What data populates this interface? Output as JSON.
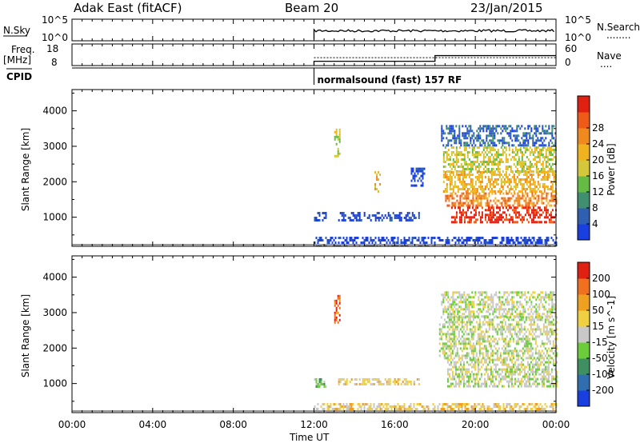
{
  "header": {
    "title": "Adak East (fitACF)",
    "beam": "Beam 20",
    "date": "23/Jan/2015"
  },
  "panels": {
    "nsky": {
      "left_label": "N.Sky",
      "right_label": "N.Search",
      "left_ticks": [
        "10^5",
        "10^0"
      ],
      "right_ticks": [
        "10^5",
        "10^0"
      ],
      "right_dots": "........"
    },
    "freq": {
      "left_label": "Freq.",
      "left_unit": "[MHz]",
      "right_label": "Nave",
      "left_ticks": [
        "18",
        "8"
      ],
      "right_ticks": [
        "60",
        "0"
      ],
      "right_dots": "....",
      "freq_mhz": [
        {
          "t": 12.0,
          "v": 10.0
        },
        {
          "t": 18.0,
          "v": 12.6
        },
        {
          "t": 24.0,
          "v": 12.6
        }
      ],
      "nave": [
        {
          "t": 12.0,
          "v": 22
        },
        {
          "t": 18.0,
          "v": 22
        },
        {
          "t": 24.0,
          "v": 22
        }
      ]
    },
    "cpid": {
      "label": "CPID",
      "program": "normalsound (fast) 157 RF",
      "start_hour": 12.0
    }
  },
  "chart_data": [
    {
      "type": "heatmap",
      "name": "power",
      "ylabel": "Slant Range [km]",
      "xlabel": "Time UT",
      "x_ticks": [
        "00:00",
        "04:00",
        "08:00",
        "12:00",
        "16:00",
        "20:00",
        "00:00"
      ],
      "xlim_hours": [
        0,
        24
      ],
      "ylim_km": [
        180,
        4600
      ],
      "y_ticks": [
        1000,
        2000,
        3000,
        4000
      ],
      "colorbar": {
        "label": "Power [dB]",
        "ticks": [
          "4",
          "8",
          "12",
          "16",
          "20",
          "24",
          "28"
        ],
        "colors": [
          "#1a3fe0",
          "#2f5fb0",
          "#3f8f70",
          "#66bb44",
          "#d4c83a",
          "#f0b21e",
          "#f08a1e",
          "#f05a18",
          "#e02010"
        ]
      },
      "regions": [
        {
          "t0": 12.0,
          "t1": 12.6,
          "r0": 900,
          "r1": 1150,
          "level": 0
        },
        {
          "t0": 13.2,
          "t1": 17.2,
          "r0": 900,
          "r1": 1150,
          "level": 0
        },
        {
          "t0": 13.0,
          "t1": 13.3,
          "r0": 2700,
          "r1": 3500,
          "level": 4
        },
        {
          "t0": 15.0,
          "t1": 15.3,
          "r0": 1700,
          "r1": 2300,
          "level": 5
        },
        {
          "t0": 16.8,
          "t1": 17.5,
          "r0": 1900,
          "r1": 2400,
          "level": 0
        },
        {
          "t0": 18.3,
          "t1": 24.0,
          "r0": 3000,
          "r1": 3600,
          "level": 1
        },
        {
          "t0": 18.4,
          "t1": 24.0,
          "r0": 2300,
          "r1": 3000,
          "level": 4
        },
        {
          "t0": 18.4,
          "t1": 24.0,
          "r0": 1700,
          "r1": 2300,
          "level": 5
        },
        {
          "t0": 18.5,
          "t1": 24.0,
          "r0": 1300,
          "r1": 1700,
          "level": 6
        },
        {
          "t0": 18.8,
          "t1": 24.0,
          "r0": 850,
          "r1": 1300,
          "level": 8
        },
        {
          "t0": 12.0,
          "t1": 24.0,
          "r0": 180,
          "r1": 450,
          "level": 0
        }
      ]
    },
    {
      "type": "heatmap",
      "name": "velocity",
      "ylabel": "Slant Range [km]",
      "xlabel": "Time UT",
      "x_ticks": [
        "00:00",
        "04:00",
        "08:00",
        "12:00",
        "16:00",
        "20:00",
        "00:00"
      ],
      "xlim_hours": [
        0,
        24
      ],
      "ylim_km": [
        180,
        4600
      ],
      "y_ticks": [
        1000,
        2000,
        3000,
        4000
      ],
      "colorbar": {
        "label": "Velocity [m s^-1]",
        "ticks": [
          "200",
          "100",
          "50",
          "15",
          "-15",
          "-50",
          "-100",
          "-200"
        ],
        "colors": [
          "#1a3fe0",
          "#2f6fb0",
          "#3f9060",
          "#6ccc3a",
          "#c8c8c8",
          "#f0d040",
          "#f0a020",
          "#f07020",
          "#e02010"
        ]
      },
      "regions": [
        {
          "t0": 12.0,
          "t1": 12.6,
          "r0": 900,
          "r1": 1150,
          "level": 3
        },
        {
          "t0": 13.2,
          "t1": 17.2,
          "r0": 950,
          "r1": 1150,
          "level": 5
        },
        {
          "t0": 13.0,
          "t1": 13.3,
          "r0": 2700,
          "r1": 3500,
          "level": 7
        },
        {
          "t0": 18.3,
          "t1": 24.0,
          "r0": 2900,
          "r1": 3600,
          "level": 4
        },
        {
          "t0": 18.2,
          "t1": 24.0,
          "r0": 1700,
          "r1": 2900,
          "level": 4
        },
        {
          "t0": 18.6,
          "t1": 24.0,
          "r0": 900,
          "r1": 1700,
          "level": 4
        },
        {
          "t0": 12.0,
          "t1": 24.0,
          "r0": 180,
          "r1": 450,
          "level": 5
        }
      ]
    }
  ]
}
